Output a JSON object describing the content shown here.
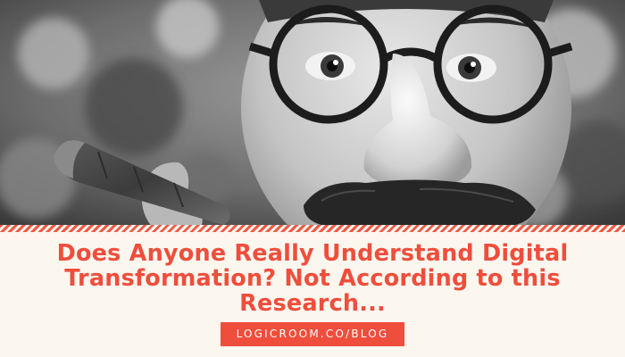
{
  "banner": {
    "photo_subject": "black-and-white portrait of a man in novelty glasses-and-nose disguise holding a cigar",
    "title_lines": [
      "Does Anyone Really Understand Digital",
      "Transformation? Not According to this",
      "Research..."
    ],
    "url_label": "LOGICROOM.CO/BLOG",
    "colors": {
      "accent": "#ef4e3c",
      "background": "#fbf7ef",
      "badge_text": "#ffffff"
    }
  }
}
